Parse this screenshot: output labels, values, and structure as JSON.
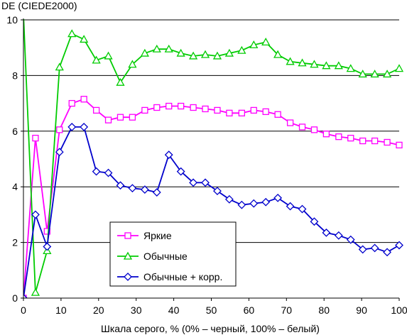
{
  "chart_data": {
    "type": "line",
    "title": "",
    "ylabel": "DE (CIEDE2000)",
    "xlabel": "Шкала серого, % (0% – черный, 100% – белый)",
    "xlim": [
      0,
      100
    ],
    "ylim": [
      0,
      10
    ],
    "xticks": [
      0,
      10,
      20,
      30,
      40,
      50,
      60,
      70,
      80,
      90,
      100
    ],
    "yticks": [
      0,
      2,
      4,
      6,
      8,
      10
    ],
    "grid": "horizontal",
    "legend_position": "center-left",
    "series": [
      {
        "name": "Яркие",
        "color": "#ff00ff",
        "marker": "square",
        "x": [
          0,
          3.2,
          6.3,
          9.6,
          12.9,
          16.1,
          19.4,
          22.6,
          25.8,
          29.0,
          32.3,
          35.5,
          38.7,
          41.9,
          45.2,
          48.4,
          51.6,
          54.8,
          58.1,
          61.3,
          64.5,
          67.7,
          71.0,
          74.2,
          77.4,
          80.6,
          83.9,
          87.1,
          90.3,
          93.5,
          96.8,
          100
        ],
        "y": [
          0,
          5.75,
          2.4,
          6.05,
          7.0,
          7.15,
          6.75,
          6.4,
          6.5,
          6.5,
          6.75,
          6.85,
          6.9,
          6.9,
          6.85,
          6.8,
          6.75,
          6.65,
          6.65,
          6.75,
          6.7,
          6.6,
          6.3,
          6.15,
          6.05,
          5.9,
          5.8,
          5.75,
          5.65,
          5.65,
          5.6,
          5.5
        ]
      },
      {
        "name": "Обычные",
        "color": "#00cc00",
        "marker": "triangle",
        "x": [
          0,
          3.2,
          6.3,
          9.6,
          12.9,
          16.1,
          19.4,
          22.6,
          25.8,
          29.0,
          32.3,
          35.5,
          38.7,
          41.9,
          45.2,
          48.4,
          51.6,
          54.8,
          58.1,
          61.3,
          64.5,
          67.7,
          71.0,
          74.2,
          77.4,
          80.6,
          83.9,
          87.1,
          90.3,
          93.5,
          96.8,
          100
        ],
        "y": [
          10.2,
          0.2,
          1.7,
          8.3,
          9.5,
          9.3,
          8.55,
          8.7,
          7.75,
          8.4,
          8.8,
          8.95,
          8.95,
          8.8,
          8.7,
          8.75,
          8.7,
          8.8,
          8.9,
          9.1,
          9.2,
          8.75,
          8.5,
          8.45,
          8.4,
          8.35,
          8.35,
          8.25,
          8.05,
          8.05,
          8.05,
          8.25
        ]
      },
      {
        "name": "Обычные + корр.",
        "color": "#0000cc",
        "marker": "diamond",
        "x": [
          0,
          3.2,
          6.3,
          9.6,
          12.9,
          16.1,
          19.4,
          22.6,
          25.8,
          29.0,
          32.3,
          35.5,
          38.7,
          41.9,
          45.2,
          48.4,
          51.6,
          54.8,
          58.1,
          61.3,
          64.5,
          67.7,
          71.0,
          74.2,
          77.4,
          80.6,
          83.9,
          87.1,
          90.3,
          93.5,
          96.8,
          100
        ],
        "y": [
          0,
          3.0,
          1.85,
          5.25,
          6.15,
          6.15,
          4.55,
          4.5,
          4.05,
          3.95,
          3.9,
          3.8,
          5.15,
          4.55,
          4.15,
          4.15,
          3.85,
          3.55,
          3.35,
          3.4,
          3.45,
          3.6,
          3.3,
          3.2,
          2.75,
          2.35,
          2.25,
          2.1,
          1.75,
          1.8,
          1.65,
          1.9
        ]
      }
    ]
  }
}
